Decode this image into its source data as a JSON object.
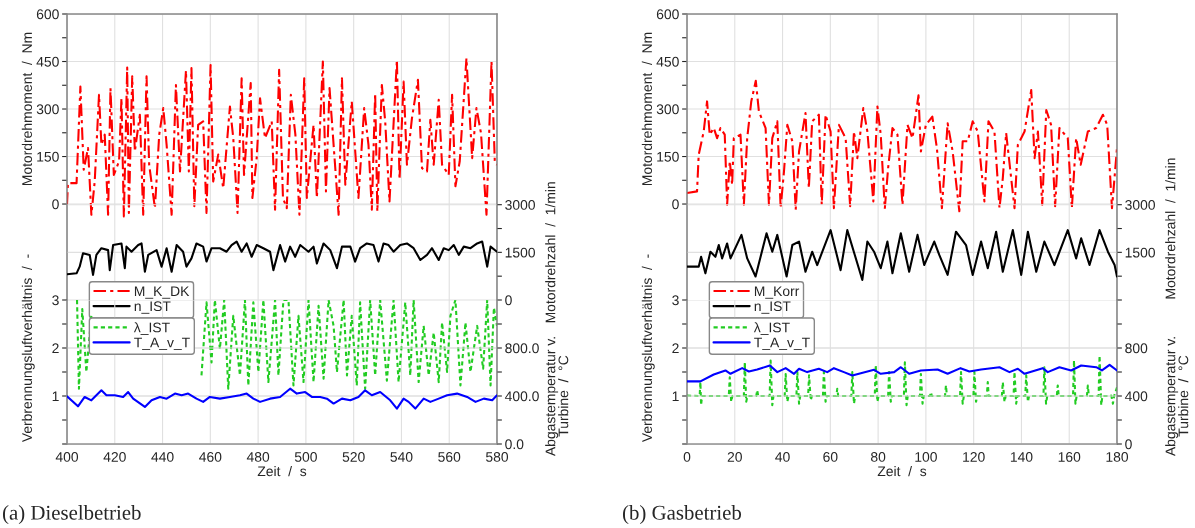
{
  "chart_data": [
    {
      "type": "line",
      "ylabel": "Motordrehmoment  /  Nm",
      "y2label": "Motordrehzahl  /  1/min",
      "tick_labels": "y",
      "xlim": [
        400,
        580
      ],
      "xticks": [
        400,
        420,
        440,
        460,
        480,
        500,
        520,
        540,
        560,
        580
      ],
      "ylim": [
        -303,
        600
      ],
      "yticks": [
        0,
        {
          "value": 75,
          "label": null
        },
        150,
        {
          "value": 225,
          "label": null
        },
        300,
        {
          "value": 375,
          "label": null
        },
        450,
        {
          "value": 525,
          "label": null
        },
        600
      ],
      "y2lim": [
        0,
        9003
      ],
      "y2ticks": [
        0,
        {
          "value": 750,
          "label": null
        },
        1500,
        {
          "value": 2250,
          "label": null
        },
        3000
      ],
      "grid": true,
      "legend": "bottom left",
      "series": [
        {
          "name": "M_K_DK",
          "color": "#ff0000",
          "line_style": "dashdot",
          "x": [
            400,
            400.4,
            404,
            405.6,
            407,
            408.8,
            410.2,
            411.6,
            413.4,
            414.4,
            415.8,
            417.2,
            418.2,
            419.6,
            421.8,
            422.8,
            423.8,
            425.2,
            425.9,
            427.3,
            428.4,
            430.5,
            431.9,
            433.3,
            434.4,
            436.8,
            438.6,
            440.3,
            441.7,
            443.8,
            445.6,
            447.3,
            449.8,
            451,
            452.1,
            453.3,
            454.9,
            457,
            458.4,
            460.1,
            461.2,
            463.3,
            465.4,
            468.2,
            469.6,
            471.4,
            473.1,
            474.1,
            476.9,
            477.6,
            479.4,
            480.8,
            482.9,
            485.7,
            487.1,
            488.8,
            490.4,
            492,
            493.7,
            495.6,
            497.3,
            499.3,
            500.4,
            503.2,
            504.6,
            507.1,
            508.4,
            509.9,
            511.8,
            513.7,
            515.1,
            516.5,
            519.2,
            522,
            524.4,
            526.2,
            527.6,
            529,
            529.9,
            531.8,
            533.2,
            535,
            538.1,
            539.2,
            540.9,
            542.3,
            544.4,
            546.9,
            548.6,
            550.7,
            552.1,
            553.5,
            555.6,
            557,
            559.8,
            561.2,
            562.6,
            564.4,
            567.2,
            569.6,
            571.4,
            573.3,
            575.6,
            577.7,
            579.1,
            580
          ],
          "values": [
            -2,
            66,
            66,
            371,
            108,
            177,
            -34,
            71,
            345,
            187,
            219,
            -34,
            366,
            92,
            135,
            334,
            -39,
            431,
            -28,
            403,
            166,
            282,
            -34,
            403,
            124,
            -13,
            219,
            303,
            187,
            -34,
            376,
            103,
            421,
            103,
            429,
            -7,
            250,
            261,
            -28,
            439,
            71,
            156,
            50,
            308,
            208,
            -28,
            397,
            92,
            382,
            19,
            145,
            334,
            208,
            261,
            -18,
            424,
            19,
            -13,
            345,
            219,
            -34,
            397,
            19,
            250,
            19,
            450,
            40,
            366,
            166,
            -34,
            397,
            61,
            324,
            19,
            303,
            187,
            -18,
            350,
            -23,
            376,
            261,
            8,
            455,
            77,
            387,
            124,
            271,
            392,
            113,
            103,
            266,
            124,
            329,
            124,
            92,
            345,
            56,
            135,
            460,
            145,
            303,
            224,
            -34,
            450,
            129,
            124
          ]
        },
        {
          "name": "n_IST",
          "color": "#000000",
          "line_style": "solid",
          "axis": "y2",
          "x": [
            400,
            404,
            405.3,
            406.7,
            409.5,
            410.9,
            412.3,
            414.4,
            417.2,
            417.9,
            419.3,
            422.8,
            424.2,
            424.9,
            427,
            429.8,
            431.2,
            432.6,
            434,
            437.5,
            439.6,
            441.7,
            443.8,
            445.9,
            448.6,
            450,
            452.1,
            454.2,
            457,
            458.4,
            460.5,
            464,
            466.8,
            468.9,
            471,
            473.1,
            475.2,
            477.3,
            479.4,
            482.2,
            485,
            486.4,
            489.2,
            491.3,
            493.4,
            495.5,
            497.6,
            501.1,
            503.2,
            504.6,
            507.4,
            510.2,
            513,
            515.1,
            518.6,
            520.6,
            522.7,
            525.5,
            528.3,
            530.4,
            532.5,
            534.6,
            536.7,
            539.5,
            542.3,
            545.1,
            547.9,
            550.7,
            552.8,
            555.6,
            557.7,
            559.8,
            561.9,
            564,
            566.1,
            568.9,
            571.7,
            573.8,
            575.9,
            577.3,
            580
          ],
          "values": [
            810,
            840,
            1050,
            1470,
            1420,
            790,
            1420,
            1630,
            1570,
            940,
            1730,
            1780,
            1000,
            1680,
            1520,
            1730,
            1780,
            890,
            1420,
            1570,
            1050,
            1630,
            890,
            1730,
            1520,
            1050,
            1310,
            1780,
            1680,
            1210,
            1630,
            1630,
            1520,
            1730,
            1840,
            1520,
            1780,
            1360,
            1730,
            1630,
            1520,
            940,
            1730,
            1210,
            1680,
            1360,
            1730,
            1520,
            1680,
            1150,
            1780,
            1570,
            1000,
            1680,
            1680,
            1210,
            1630,
            1780,
            1730,
            1210,
            1780,
            1730,
            1520,
            1730,
            1780,
            1630,
            1260,
            1420,
            1630,
            1260,
            1630,
            1570,
            1730,
            1420,
            1680,
            1630,
            1780,
            1840,
            1050,
            1680,
            1520
          ]
        }
      ]
    },
    {
      "type": "line",
      "title": "(a) Dieselbetrieb",
      "xlabel": "Zeit  /  s",
      "ylabel": "Verbrennungsluftverhältnis  /  -",
      "y2label": "Abgastemperatur v.\nTurbine  /  °C",
      "xlim": [
        400,
        580
      ],
      "xticks": [
        400,
        420,
        440,
        460,
        480,
        500,
        520,
        540,
        560,
        580
      ],
      "ylim": [
        0,
        3
      ],
      "yticks": [
        {
          "value": 0,
          "label": null
        },
        {
          "value": 0.5,
          "label": null
        },
        1,
        {
          "value": 1.5,
          "label": null
        },
        2,
        {
          "value": 2.5,
          "label": null
        },
        3
      ],
      "y2lim": [
        0,
        1200
      ],
      "y2ticks": [
        {
          "value": 0,
          "label": "0.0"
        },
        {
          "value": 200,
          "label": null
        },
        {
          "value": 400,
          "label": "400.0"
        },
        {
          "value": 600,
          "label": null
        },
        {
          "value": 800,
          "label": "800.0"
        },
        {
          "value": 1000,
          "label": null
        }
      ],
      "grid": true,
      "legend": "top left",
      "series": [
        {
          "name": "λ_IST",
          "color": "#22cc22",
          "line_style": "dotted",
          "x": [
            404.2,
            405,
            406.4,
            408.1,
            410.2,
            432,
            456.3,
            458.4,
            460.5,
            461.9,
            464,
            465.8,
            467.5,
            469.6,
            472.4,
            474.5,
            475.9,
            478,
            480.1,
            482.2,
            484.3,
            487.1,
            488.5,
            490.6,
            492.7,
            494.8,
            496.9,
            499,
            501.1,
            503.2,
            505.3,
            507.4,
            509.5,
            511.6,
            513,
            515.8,
            517.2,
            519.2,
            521.3,
            522.7,
            524.8,
            526.9,
            529,
            531.1,
            533.9,
            536.7,
            538.8,
            541.6,
            543.7,
            545.1,
            547.2,
            549.3,
            551.4,
            553.5,
            555.6,
            557,
            559.1,
            560.5,
            562.6,
            564.7,
            566.8,
            568.9,
            571.7,
            574.2,
            575.9,
            577.3,
            578.7,
            580
          ],
          "values": [
            3,
            1.15,
            2.81,
            1.5,
            2.67,
            null,
            1.43,
            2.95,
            1.7,
            3,
            1.98,
            3,
            1.15,
            2.67,
            1.43,
            3,
            1.22,
            2.95,
            1.5,
            3,
            1.29,
            3,
            1.43,
            3,
            3,
            1.22,
            2.67,
            1.29,
            3,
            1.29,
            2.88,
            1.36,
            3,
            2.46,
            1.5,
            3,
            1.43,
            2.67,
            1.22,
            2.95,
            1.15,
            3,
            1.43,
            3,
            1.32,
            3,
            1.29,
            2.95,
            1.43,
            3,
            1.29,
            2.46,
            1.43,
            2.32,
            1.29,
            2.53,
            1.5,
            2.67,
            3,
            1.22,
            2.53,
            1.5,
            2.46,
            1.57,
            3,
            1.22,
            2.84,
            2.46
          ]
        },
        {
          "name": "T_A_v_T",
          "color": "#0000ff",
          "line_style": "solid",
          "axis": "y2",
          "x": [
            400,
            404.6,
            407.4,
            410.2,
            414.4,
            416.5,
            420,
            423.5,
            425.6,
            427.7,
            432.6,
            435.4,
            438.9,
            441.7,
            445.2,
            448,
            450.7,
            454.2,
            457,
            459.8,
            464,
            468.2,
            472.4,
            475.2,
            478,
            480.8,
            485,
            489.2,
            493.4,
            496.2,
            499.7,
            502.5,
            506,
            508.8,
            511.6,
            515.1,
            518.6,
            522,
            524.8,
            527.6,
            531.1,
            535.3,
            538.1,
            540.9,
            543,
            545.8,
            549.3,
            552.1,
            555.6,
            559.1,
            563.3,
            567.5,
            571,
            574.5,
            578,
            580
          ],
          "values": [
            397,
            314,
            392,
            364,
            447,
            406,
            406,
            392,
            433,
            378,
            309,
            364,
            392,
            378,
            420,
            406,
            420,
            378,
            351,
            392,
            378,
            392,
            406,
            420,
            378,
            351,
            378,
            392,
            461,
            420,
            433,
            392,
            392,
            378,
            337,
            378,
            364,
            392,
            447,
            406,
            433,
            364,
            295,
            378,
            351,
            295,
            378,
            351,
            378,
            406,
            420,
            392,
            351,
            378,
            364,
            406
          ]
        }
      ]
    },
    {
      "type": "line",
      "ylabel": "Motordrehmoment  /  Nm",
      "y2label": "Motordrehzahl  /  1/min",
      "tick_labels": "y",
      "xlim": [
        0,
        180
      ],
      "xticks": [
        0,
        20,
        40,
        60,
        80,
        100,
        120,
        140,
        160,
        180
      ],
      "ylim": [
        -303,
        600
      ],
      "yticks": [
        0,
        {
          "value": 75,
          "label": null
        },
        150,
        {
          "value": 225,
          "label": null
        },
        300,
        {
          "value": 375,
          "label": null
        },
        450,
        {
          "value": 525,
          "label": null
        },
        600
      ],
      "y2lim": [
        0,
        9003
      ],
      "y2ticks": [
        {
          "value": 0,
          "label": null
        },
        {
          "value": 750,
          "label": null
        },
        1500,
        {
          "value": 2250,
          "label": null
        },
        3000
      ],
      "grid": true,
      "legend": "bottom left",
      "series": [
        {
          "name": "M_Korr",
          "color": "#ff0000",
          "line_style": "dashdot",
          "x": [
            0,
            4.2,
            4.9,
            7,
            8.4,
            9.5,
            11.2,
            12.6,
            14,
            15.8,
            16.8,
            17.9,
            18.9,
            19.6,
            22.4,
            23.8,
            25.2,
            26.9,
            28.8,
            30.1,
            32.9,
            34.3,
            35.7,
            37.8,
            39.2,
            40.6,
            42,
            44.1,
            45.5,
            46.9,
            49.6,
            51,
            52.4,
            55.2,
            56.4,
            58,
            60.1,
            61.5,
            63.6,
            66.4,
            68.3,
            69.9,
            71.3,
            73.8,
            75.5,
            78,
            79.7,
            81.1,
            82.8,
            84.2,
            86,
            88.1,
            90.2,
            92.3,
            94.4,
            96.9,
            97.9,
            100,
            102.7,
            104.6,
            106.7,
            109.1,
            111.2,
            114,
            115.4,
            117.5,
            119.6,
            121.7,
            124.5,
            126.2,
            128.7,
            130.8,
            132.2,
            133.6,
            137.1,
            138.5,
            141.3,
            144.1,
            145.5,
            146.9,
            148.7,
            150.4,
            152.4,
            154.1,
            155.9,
            159.4,
            161.1,
            162.9,
            164.8,
            167.8,
            171.3,
            174.1,
            175.9,
            177.9,
            180
          ],
          "values": [
            35,
            40,
            156,
            229,
            324,
            219,
            240,
            208,
            240,
            219,
            -2,
            135,
            61,
            208,
            219,
            -2,
            208,
            324,
            389,
            292,
            240,
            -2,
            208,
            261,
            -13,
            103,
            250,
            198,
            -18,
            166,
            287,
            50,
            261,
            282,
            -2,
            282,
            229,
            -13,
            250,
            208,
            -7,
            229,
            145,
            303,
            229,
            8,
            308,
            219,
            -15,
            114,
            240,
            219,
            -2,
            250,
            208,
            343,
            166,
            250,
            276,
            177,
            -13,
            255,
            166,
            -23,
            198,
            198,
            261,
            229,
            8,
            261,
            229,
            -13,
            82,
            224,
            -13,
            187,
            229,
            360,
            145,
            229,
            -2,
            297,
            250,
            -7,
            240,
            208,
            -13,
            208,
            124,
            229,
            240,
            282,
            250,
            -13,
            177
          ]
        },
        {
          "name": "n_IST",
          "color": "#000000",
          "line_style": "solid",
          "axis": "y2",
          "x": [
            0,
            4.9,
            5.9,
            7.7,
            9.8,
            11.9,
            13.3,
            14.7,
            16.8,
            18.2,
            22.8,
            25.2,
            28.7,
            33.3,
            35.7,
            37.8,
            41.7,
            44.1,
            46.9,
            49.6,
            52.4,
            54.5,
            60.1,
            64.3,
            67.1,
            73.4,
            75.5,
            78.3,
            81.1,
            83.9,
            86,
            89.5,
            93,
            96.5,
            99.3,
            103.5,
            105.6,
            109.1,
            112.6,
            116.8,
            119.6,
            123.1,
            125.9,
            129.4,
            132.2,
            136.4,
            139.9,
            142.7,
            146.2,
            149.6,
            153.8,
            159.4,
            162.9,
            165,
            168.5,
            172.7,
            176.2,
            179,
            180
          ],
          "values": [
            1050,
            1050,
            1360,
            840,
            1520,
            1360,
            1730,
            1310,
            1780,
            1310,
            2050,
            1310,
            740,
            2100,
            1520,
            2050,
            740,
            1730,
            1840,
            890,
            1520,
            1100,
            2200,
            940,
            2200,
            630,
            1840,
            1520,
            1000,
            1840,
            840,
            2100,
            890,
            2050,
            1100,
            1840,
            1420,
            790,
            2150,
            1730,
            790,
            1840,
            1000,
            2150,
            890,
            2200,
            790,
            2150,
            890,
            1840,
            1100,
            2200,
            1310,
            1940,
            1100,
            2200,
            1520,
            1100,
            740
          ]
        }
      ]
    },
    {
      "type": "line",
      "title": "(b) Gasbetrieb",
      "xlabel": "Zeit  /  s",
      "ylabel": "Verbrennungsluftverhältnis  /  -",
      "y2label": "Abgastemperatur v.\nTurbine  /  °C",
      "xlim": [
        0,
        180
      ],
      "xticks": [
        0,
        20,
        40,
        60,
        80,
        100,
        120,
        140,
        160,
        180
      ],
      "ylim": [
        0,
        3
      ],
      "yticks": [
        {
          "value": 0,
          "label": null
        },
        {
          "value": 0.5,
          "label": null
        },
        1,
        {
          "value": 1.5,
          "label": null
        },
        2,
        {
          "value": 2.5,
          "label": null
        },
        3
      ],
      "y2lim": [
        0,
        1200
      ],
      "y2ticks": [
        0,
        {
          "value": 200,
          "label": null
        },
        400,
        {
          "value": 600,
          "label": null
        },
        800,
        {
          "value": 1000,
          "label": null
        }
      ],
      "grid": true,
      "legend": "top left",
      "series": [
        {
          "name": "λ_IST",
          "color": "#22cc22",
          "line_style": "dotted",
          "x": [
            0,
            5.3,
            5.6,
            5.9,
            6.3,
            17.5,
            17.9,
            18.5,
            19,
            23.8,
            24.2,
            24.8,
            25.3,
            29,
            29.4,
            29.8,
            34.6,
            35,
            35.7,
            36.2,
            40.9,
            41.3,
            42,
            42.5,
            45.8,
            46.2,
            46.9,
            47.4,
            50.7,
            51.1,
            51.8,
            52.3,
            56.9,
            57.3,
            58,
            58.5,
            62.5,
            62.9,
            63.3,
            68.8,
            69.2,
            69.9,
            70.4,
            78.6,
            79,
            79.7,
            80.2,
            84.2,
            84.6,
            85.3,
            85.8,
            90.8,
            91.2,
            91.9,
            92.4,
            97.5,
            97.9,
            98.6,
            99.1,
            101.7,
            102.1,
            102.5,
            108,
            108.4,
            108.8,
            114.3,
            114.7,
            115.4,
            115.9,
            119.9,
            120.3,
            121,
            121.5,
            125.5,
            125.9,
            126.3,
            131.8,
            132.2,
            132.9,
            133.4,
            136.7,
            137.1,
            137.8,
            138.3,
            141.6,
            142,
            142.7,
            143.2,
            149.2,
            149.6,
            150.3,
            150.8,
            154.8,
            155.2,
            155.6,
            161.6,
            162,
            162.6,
            163.1,
            167.4,
            167.8,
            168.2,
            172.3,
            172.7,
            173.4,
            173.9,
            177.2,
            177.6,
            178.3,
            178.8,
            180
          ],
          "values": [
            1.01,
            1,
            1.29,
            0.81,
            1,
            1,
            1.39,
            0.88,
            1,
            1,
            1.7,
            0.88,
            1,
            1,
            1.12,
            1,
            1,
            1.74,
            0.81,
            1,
            1,
            1.46,
            0.88,
            1,
            1,
            1.5,
            0.84,
            1,
            1,
            1.43,
            0.91,
            1,
            1,
            1.5,
            0.88,
            1,
            1,
            1.15,
            1,
            1,
            1.5,
            0.84,
            1,
            1,
            1.64,
            0.88,
            1,
            1,
            1.5,
            0.88,
            1,
            1,
            1.7,
            0.81,
            1,
            1,
            1.46,
            0.84,
            1,
            1,
            1.08,
            1,
            1,
            1.22,
            1,
            1,
            1.5,
            0.84,
            1,
            1,
            1.5,
            0.88,
            1,
            1,
            1.29,
            1,
            1,
            1.29,
            0.88,
            1,
            1,
            1.5,
            0.84,
            1,
            1,
            1.43,
            0.88,
            1,
            1,
            1.6,
            0.84,
            1,
            1,
            1.22,
            1,
            1,
            1.74,
            0.84,
            1,
            1,
            1.22,
            1,
            1,
            1.84,
            0.81,
            1,
            1,
            1.01,
            0.84,
            1,
            1.18
          ]
        },
        {
          "name": "T_A_v_T",
          "color": "#0000ff",
          "line_style": "solid",
          "axis": "y2",
          "x": [
            0,
            5.6,
            11.2,
            16.1,
            18.2,
            23.1,
            25.9,
            29.4,
            34.7,
            37.8,
            41.3,
            44.8,
            46.9,
            50.3,
            55.2,
            58.7,
            61.5,
            65.7,
            69.2,
            78.3,
            81.1,
            86.7,
            89.5,
            93,
            97.9,
            104.9,
            109.1,
            114.5,
            118.2,
            123.1,
            130.8,
            135,
            138.5,
            141.3,
            148.9,
            151,
            155.9,
            160.8,
            165,
            171.3,
            173.7,
            176.9,
            180
          ],
          "values": [
            522,
            522,
            579,
            613,
            585,
            632,
            604,
            621,
            654,
            599,
            632,
            585,
            627,
            599,
            627,
            599,
            632,
            599,
            571,
            618,
            585,
            599,
            640,
            585,
            613,
            621,
            585,
            632,
            604,
            621,
            640,
            599,
            627,
            585,
            632,
            599,
            640,
            613,
            654,
            640,
            613,
            659,
            613
          ]
        }
      ]
    }
  ]
}
